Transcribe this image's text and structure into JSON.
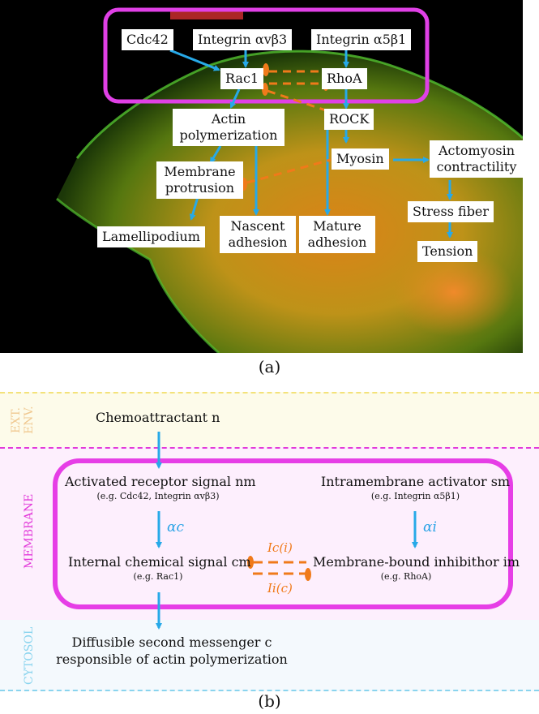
{
  "panel_a": {
    "caption": "(a)",
    "nodes": {
      "cdc42": "Cdc42",
      "integrin_avb3": "Integrin αvβ3",
      "integrin_a5b1": "Integrin α5β1",
      "rac1": "Rac1",
      "rhoa": "RhoA",
      "rock": "ROCK",
      "actin_poly_1": "Actin",
      "actin_poly_2": "polymerization",
      "membrane_prot_1": "Membrane",
      "membrane_prot_2": "protrusion",
      "myosin": "Myosin",
      "actomyosin_1": "Actomyosin",
      "actomyosin_2": "contractility",
      "stress_fiber": "Stress fiber",
      "tension": "Tension",
      "lamellipodium": "Lamellipodium",
      "nascent_1": "Nascent",
      "nascent_2": "adhesion",
      "mature_1": "Mature",
      "mature_2": "adhesion"
    },
    "colors": {
      "activation": "#27a9e8",
      "inhibition": "#f07a1a",
      "membrane_box": "#e040e6"
    }
  },
  "panel_b": {
    "caption": "(b)",
    "bands": {
      "ext": "EXT. ENV.",
      "membrane": "MEMBRANE",
      "cytosol": "CYTOSOL"
    },
    "chemoattractant": "Chemoattractant n",
    "activated_receptor": "Activated receptor signal nm",
    "activated_receptor_ex": "(e.g. Cdc42, Integrin αvβ3)",
    "intramembrane": "Intramembrane activator sm",
    "intramembrane_ex": "(e.g. Integrin α5β1)",
    "alpha_c": "αc",
    "alpha_i": "αi",
    "internal_signal": "Internal chemical signal cm",
    "internal_signal_ex": "(e.g. Rac1)",
    "inhibitor": "Membrane-bound inhibithor im",
    "inhibitor_ex": "(e.g. RhoA)",
    "ic_i": "Ic(i)",
    "ii_c": "Ii(c)",
    "diffusible_1": "Diffusible second messenger c",
    "diffusible_2": "responsible of actin polymerization",
    "colors": {
      "ext_bg": "#fdfbea",
      "membrane_bg": "#fdeffd",
      "cytosol_bg": "#f4f9fd",
      "ext_label": "#f0c890",
      "membrane_label": "#e23ad9",
      "cytosol_label": "#8ad4ee"
    }
  }
}
